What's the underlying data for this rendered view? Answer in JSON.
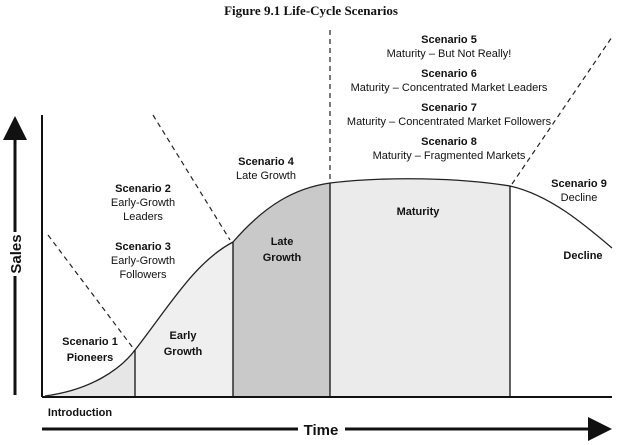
{
  "title": "Figure 9.1  Life-Cycle Scenarios",
  "axes": {
    "y_label": "Sales",
    "x_label": "Time"
  },
  "phases": {
    "introduction": "Introduction",
    "early_growth": [
      "Early",
      "Growth"
    ],
    "late_growth": [
      "Late",
      "Growth"
    ],
    "maturity": "Maturity",
    "decline": "Decline"
  },
  "scenarios": [
    {
      "name": "Scenario 1",
      "desc": "Pioneers"
    },
    {
      "name": "Scenario 2",
      "desc": [
        "Early-Growth",
        "Leaders"
      ]
    },
    {
      "name": "Scenario 3",
      "desc": [
        "Early-Growth",
        "Followers"
      ]
    },
    {
      "name": "Scenario 4",
      "desc": "Late Growth"
    },
    {
      "name": "Scenario 5",
      "desc": "Maturity – But Not Really!"
    },
    {
      "name": "Scenario 6",
      "desc": "Maturity – Concentrated Market Leaders"
    },
    {
      "name": "Scenario 7",
      "desc": "Maturity – Concentrated Market Followers"
    },
    {
      "name": "Scenario 8",
      "desc": "Maturity – Fragmented Markets"
    },
    {
      "name": "Scenario 9",
      "desc": "Decline"
    }
  ],
  "colors": {
    "ink": "#111111",
    "light_shade": "#ebebeb",
    "dark_shade": "#c9c9c9"
  }
}
